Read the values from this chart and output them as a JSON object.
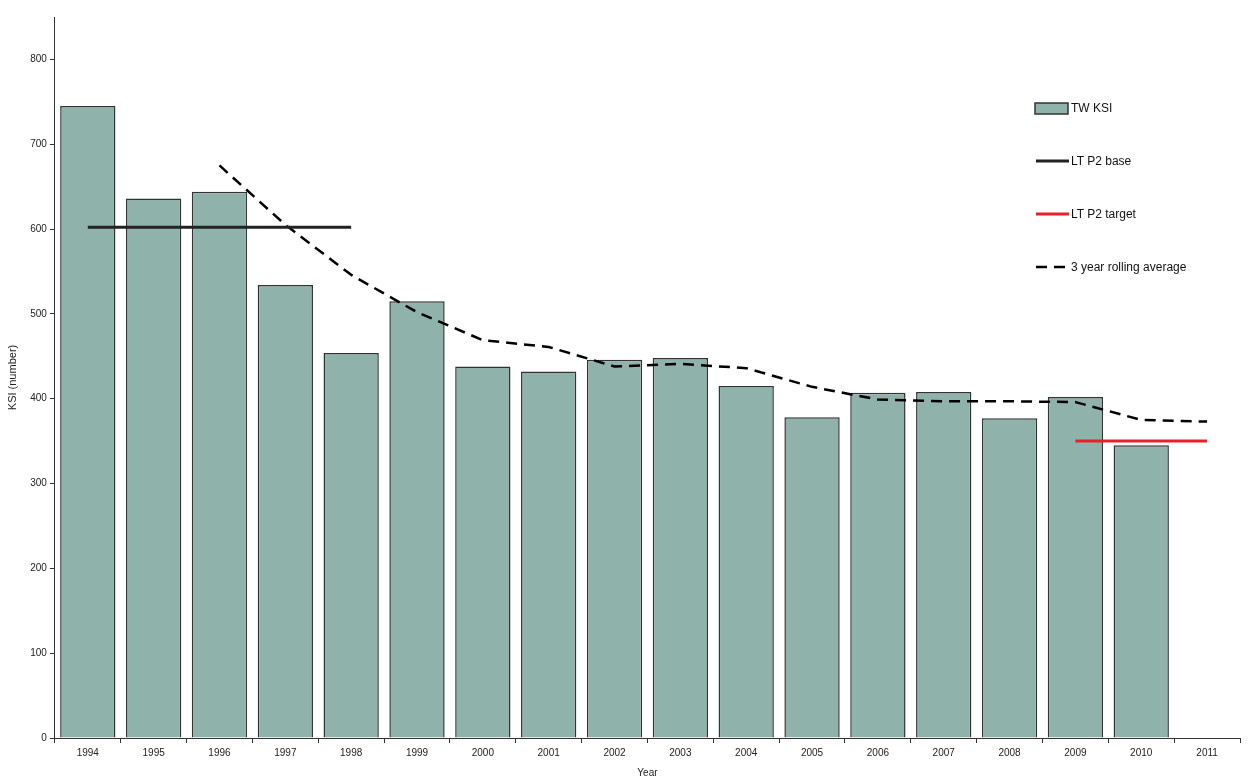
{
  "chart_data": {
    "type": "bar",
    "xlabel": "Year",
    "ylabel": "KSI (number)",
    "categories": [
      "1994",
      "1995",
      "1996",
      "1997",
      "1998",
      "1999",
      "2000",
      "2001",
      "2002",
      "2003",
      "2004",
      "2005",
      "2006",
      "2007",
      "2008",
      "2009",
      "2010",
      "2011"
    ],
    "series": [
      {
        "name": "TW KSI",
        "color": "#8fb3aa",
        "values": [
          745,
          636,
          644,
          534,
          454,
          515,
          438,
          432,
          446,
          448,
          415,
          378,
          407,
          408,
          377,
          402,
          345,
          null
        ]
      },
      {
        "name": "LT P2 base",
        "type": "line",
        "color": "#222222",
        "values": [
          602,
          602,
          602,
          602,
          602,
          null,
          null,
          null,
          null,
          null,
          null,
          null,
          null,
          null,
          null,
          null,
          null,
          null
        ]
      },
      {
        "name": "LT P2 target",
        "type": "line",
        "color": "#e8202a",
        "values": [
          null,
          null,
          null,
          null,
          null,
          null,
          null,
          null,
          null,
          null,
          null,
          null,
          null,
          null,
          null,
          350,
          350,
          350
        ]
      },
      {
        "name": "3 year rolling average",
        "type": "line",
        "color": "#000000",
        "line_style": "dashed",
        "values": [
          null,
          null,
          675,
          605,
          546,
          502,
          469,
          461,
          438,
          441,
          436,
          414,
          399,
          397,
          397,
          396,
          375,
          373
        ]
      }
    ],
    "ylim": [
      0,
      850
    ],
    "yticks": [
      0,
      100,
      200,
      300,
      400,
      500,
      600,
      700,
      800
    ],
    "legend": "top right"
  }
}
